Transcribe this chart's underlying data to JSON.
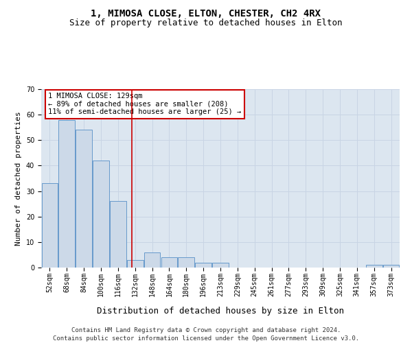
{
  "title": "1, MIMOSA CLOSE, ELTON, CHESTER, CH2 4RX",
  "subtitle": "Size of property relative to detached houses in Elton",
  "xlabel": "Distribution of detached houses by size in Elton",
  "ylabel": "Number of detached properties",
  "footer1": "Contains HM Land Registry data © Crown copyright and database right 2024.",
  "footer2": "Contains public sector information licensed under the Open Government Licence v3.0.",
  "bin_labels": [
    "52sqm",
    "68sqm",
    "84sqm",
    "100sqm",
    "116sqm",
    "132sqm",
    "148sqm",
    "164sqm",
    "180sqm",
    "196sqm",
    "213sqm",
    "229sqm",
    "245sqm",
    "261sqm",
    "277sqm",
    "293sqm",
    "309sqm",
    "325sqm",
    "341sqm",
    "357sqm",
    "373sqm"
  ],
  "bar_values": [
    33,
    58,
    54,
    42,
    26,
    3,
    6,
    4,
    4,
    2,
    2,
    0,
    0,
    0,
    0,
    0,
    0,
    0,
    0,
    1,
    1
  ],
  "bar_color": "#ccd9e8",
  "bar_edgecolor": "#6699cc",
  "vline_x": 4.82,
  "vline_color": "#cc0000",
  "annotation_text": "1 MIMOSA CLOSE: 129sqm\n← 89% of detached houses are smaller (208)\n11% of semi-detached houses are larger (25) →",
  "annotation_box_color": "#cc0000",
  "ylim": [
    0,
    70
  ],
  "yticks": [
    0,
    10,
    20,
    30,
    40,
    50,
    60,
    70
  ],
  "grid_color": "#c8d4e4",
  "background_color": "#dce6f0",
  "title_fontsize": 10,
  "subtitle_fontsize": 9,
  "ylabel_fontsize": 8,
  "xlabel_fontsize": 9,
  "tick_fontsize": 7,
  "annotation_fontsize": 7.5,
  "footer_fontsize": 6.5
}
